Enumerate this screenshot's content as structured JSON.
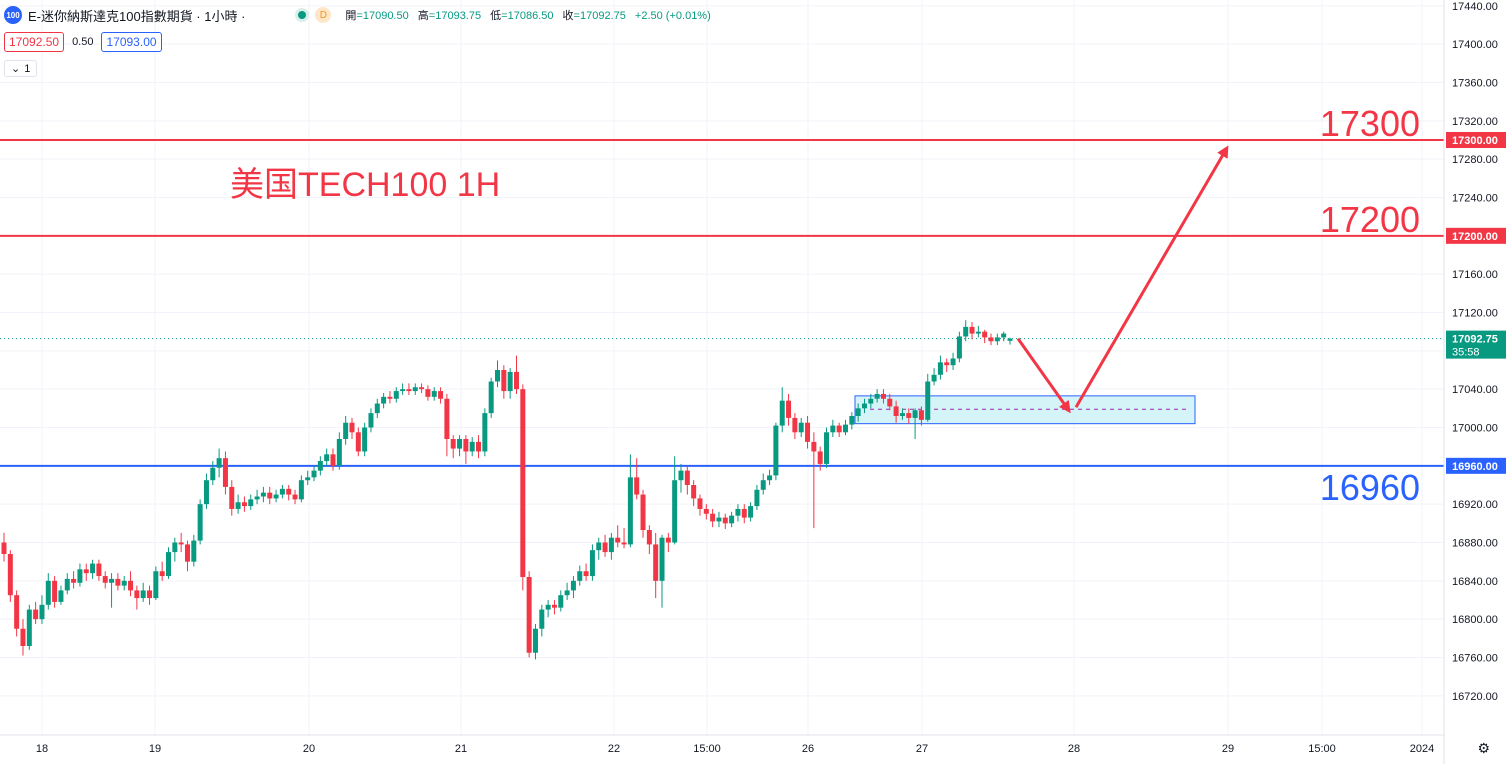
{
  "header": {
    "logo_text": "100",
    "title": "E-迷你納斯達克100指數期貨 · 1小時 ·",
    "status_badge": "D",
    "ohlc": {
      "open_label": "開",
      "open": "=17090.50",
      "high_label": "高",
      "high": "=17093.75",
      "low_label": "低",
      "low": "=17086.50",
      "close_label": "收",
      "close": "=17092.75",
      "change": "+2.50 (+0.01%)"
    }
  },
  "trade": {
    "sell_price": "17092.50",
    "spread": "0.50",
    "buy_price": "17093.00"
  },
  "indicator_toggle": {
    "count": "1"
  },
  "colors": {
    "up": "#089981",
    "down": "#f23645",
    "support": "#2962ff",
    "resistance": "#f23645",
    "annotation": "#f23645"
  },
  "chart_data": {
    "type": "candlestick",
    "instrument": "E-迷你納斯達克100指數期貨",
    "interval": "1小時",
    "annotation_text": "美国TECH100 1H",
    "y_axis": {
      "ylim": [
        16700,
        17450
      ],
      "ticks": [
        "17440.00",
        "17400.00",
        "17360.00",
        "17320.00",
        "17280.00",
        "17240.00",
        "17200.00",
        "17160.00",
        "17120.00",
        "17080.00",
        "17040.00",
        "17000.00",
        "16960.00",
        "16920.00",
        "16880.00",
        "16840.00",
        "16800.00",
        "16760.00",
        "16720.00"
      ]
    },
    "x_axis": {
      "labels": [
        "18",
        "19",
        "20",
        "21",
        "22",
        "15:00",
        "26",
        "27",
        "28",
        "29",
        "15:00",
        "2024"
      ]
    },
    "horizontal_levels": [
      {
        "value": 17300,
        "label": "17300",
        "axis_label": "17300.00",
        "color": "#f23645"
      },
      {
        "value": 17200,
        "label": "17200",
        "axis_label": "17200.00",
        "color": "#f23645"
      },
      {
        "value": 16960,
        "label": "16960",
        "axis_label": "16960.00",
        "color": "#2962ff"
      }
    ],
    "current_price": {
      "value": 17092.75,
      "label": "17092.75",
      "countdown": "35:58"
    },
    "zone": {
      "top": 17033,
      "bottom": 17004,
      "mid": 17019
    },
    "projection_path": [
      17092.75,
      17019,
      17290
    ],
    "candles": [
      [
        16880,
        16868,
        16890,
        16860
      ],
      [
        16868,
        16825,
        16872,
        16818
      ],
      [
        16825,
        16790,
        16830,
        16782
      ],
      [
        16790,
        16772,
        16800,
        16762
      ],
      [
        16772,
        16810,
        16815,
        16768
      ],
      [
        16810,
        16800,
        16818,
        16795
      ],
      [
        16800,
        16815,
        16825,
        16795
      ],
      [
        16815,
        16840,
        16848,
        16810
      ],
      [
        16840,
        16818,
        16845,
        16812
      ],
      [
        16818,
        16830,
        16835,
        16815
      ],
      [
        16830,
        16842,
        16848,
        16826
      ],
      [
        16842,
        16838,
        16850,
        16832
      ],
      [
        16838,
        16852,
        16858,
        16834
      ],
      [
        16852,
        16848,
        16858,
        16840
      ],
      [
        16848,
        16858,
        16862,
        16842
      ],
      [
        16858,
        16845,
        16862,
        16840
      ],
      [
        16845,
        16838,
        16850,
        16832
      ],
      [
        16838,
        16842,
        16848,
        16812
      ],
      [
        16842,
        16835,
        16848,
        16830
      ],
      [
        16835,
        16840,
        16845,
        16830
      ],
      [
        16840,
        16830,
        16850,
        16824
      ],
      [
        16830,
        16822,
        16835,
        16810
      ],
      [
        16822,
        16830,
        16838,
        16818
      ],
      [
        16830,
        16822,
        16835,
        16815
      ],
      [
        16822,
        16850,
        16855,
        16820
      ],
      [
        16850,
        16845,
        16860,
        16840
      ],
      [
        16845,
        16870,
        16875,
        16842
      ],
      [
        16870,
        16880,
        16885,
        16860
      ],
      [
        16880,
        16878,
        16890,
        16870
      ],
      [
        16878,
        16860,
        16882,
        16850
      ],
      [
        16860,
        16882,
        16888,
        16855
      ],
      [
        16882,
        16920,
        16925,
        16878
      ],
      [
        16920,
        16945,
        16952,
        16915
      ],
      [
        16945,
        16958,
        16965,
        16940
      ],
      [
        16958,
        16968,
        16978,
        16948
      ],
      [
        16968,
        16938,
        16975,
        16930
      ],
      [
        16938,
        16915,
        16945,
        16908
      ],
      [
        16915,
        16922,
        16930,
        16910
      ],
      [
        16922,
        16918,
        16928,
        16912
      ],
      [
        16918,
        16925,
        16930,
        16914
      ],
      [
        16925,
        16928,
        16935,
        16920
      ],
      [
        16928,
        16932,
        16938,
        16922
      ],
      [
        16932,
        16926,
        16938,
        16920
      ],
      [
        16926,
        16930,
        16935,
        16922
      ],
      [
        16930,
        16936,
        16940,
        16926
      ],
      [
        16936,
        16930,
        16940,
        16924
      ],
      [
        16930,
        16925,
        16935,
        16920
      ],
      [
        16925,
        16945,
        16950,
        16922
      ],
      [
        16945,
        16948,
        16955,
        16940
      ],
      [
        16948,
        16955,
        16960,
        16944
      ],
      [
        16955,
        16965,
        16970,
        16950
      ],
      [
        16965,
        16972,
        16978,
        16960
      ],
      [
        16972,
        16960,
        16978,
        16955
      ],
      [
        16960,
        16988,
        16995,
        16956
      ],
      [
        16988,
        17005,
        17012,
        16982
      ],
      [
        17005,
        16995,
        17010,
        16988
      ],
      [
        16995,
        16975,
        17000,
        16970
      ],
      [
        16975,
        17000,
        17005,
        16970
      ],
      [
        17000,
        17015,
        17020,
        16995
      ],
      [
        17015,
        17025,
        17030,
        17010
      ],
      [
        17025,
        17032,
        17036,
        17020
      ],
      [
        17032,
        17030,
        17038,
        17025
      ],
      [
        17030,
        17038,
        17042,
        17026
      ],
      [
        17038,
        17040,
        17046,
        17034
      ],
      [
        17040,
        17038,
        17046,
        17034
      ],
      [
        17038,
        17042,
        17046,
        17034
      ],
      [
        17042,
        17040,
        17046,
        17036
      ],
      [
        17040,
        17032,
        17044,
        17028
      ],
      [
        17032,
        17038,
        17042,
        17028
      ],
      [
        17038,
        17030,
        17042,
        17025
      ],
      [
        17030,
        16988,
        17035,
        16970
      ],
      [
        16988,
        16978,
        16992,
        16968
      ],
      [
        16978,
        16988,
        16992,
        16970
      ],
      [
        16988,
        16975,
        16992,
        16962
      ],
      [
        16975,
        16985,
        16990,
        16970
      ],
      [
        16985,
        16975,
        16992,
        16968
      ],
      [
        16975,
        17015,
        17020,
        16970
      ],
      [
        17015,
        17048,
        17052,
        17010
      ],
      [
        17048,
        17060,
        17070,
        17042
      ],
      [
        17060,
        17038,
        17065,
        17030
      ],
      [
        17038,
        17058,
        17062,
        17030
      ],
      [
        17058,
        17040,
        17075,
        17035
      ],
      [
        17040,
        16844,
        17045,
        16830
      ],
      [
        16844,
        16765,
        16850,
        16760
      ],
      [
        16765,
        16790,
        16795,
        16758
      ],
      [
        16790,
        16810,
        16815,
        16782
      ],
      [
        16810,
        16815,
        16820,
        16802
      ],
      [
        16815,
        16812,
        16820,
        16805
      ],
      [
        16812,
        16825,
        16830,
        16808
      ],
      [
        16825,
        16830,
        16838,
        16820
      ],
      [
        16830,
        16840,
        16845,
        16822
      ],
      [
        16840,
        16850,
        16856,
        16835
      ],
      [
        16850,
        16845,
        16858,
        16840
      ],
      [
        16845,
        16872,
        16878,
        16840
      ],
      [
        16872,
        16880,
        16885,
        16862
      ],
      [
        16880,
        16870,
        16888,
        16865
      ],
      [
        16870,
        16885,
        16890,
        16862
      ],
      [
        16885,
        16880,
        16898,
        16875
      ],
      [
        16880,
        16878,
        16895,
        16874
      ],
      [
        16878,
        16948,
        16972,
        16875
      ],
      [
        16948,
        16930,
        16968,
        16925
      ],
      [
        16930,
        16893,
        16935,
        16885
      ],
      [
        16893,
        16878,
        16898,
        16868
      ],
      [
        16878,
        16840,
        16890,
        16822
      ],
      [
        16840,
        16885,
        16888,
        16812
      ],
      [
        16885,
        16880,
        16890,
        16870
      ],
      [
        16880,
        16945,
        16970,
        16878
      ],
      [
        16945,
        16955,
        16962,
        16932
      ],
      [
        16955,
        16940,
        16960,
        16930
      ],
      [
        16940,
        16926,
        16945,
        16918
      ],
      [
        16926,
        16915,
        16930,
        16908
      ],
      [
        16915,
        16910,
        16920,
        16904
      ],
      [
        16910,
        16902,
        16915,
        16896
      ],
      [
        16902,
        16906,
        16912,
        16896
      ],
      [
        16906,
        16900,
        16910,
        16894
      ],
      [
        16900,
        16908,
        16912,
        16896
      ],
      [
        16908,
        16915,
        16920,
        16902
      ],
      [
        16915,
        16906,
        16920,
        16900
      ],
      [
        16906,
        16918,
        16922,
        16902
      ],
      [
        16918,
        16935,
        16940,
        16914
      ],
      [
        16935,
        16945,
        16952,
        16930
      ],
      [
        16945,
        16950,
        16956,
        16940
      ],
      [
        16950,
        17002,
        17005,
        16945
      ],
      [
        17002,
        17028,
        17042,
        16995
      ],
      [
        17028,
        17010,
        17035,
        17002
      ],
      [
        17010,
        16995,
        17015,
        16988
      ],
      [
        16995,
        17005,
        17010,
        16990
      ],
      [
        17005,
        16985,
        17012,
        16978
      ],
      [
        16985,
        16975,
        16995,
        16895
      ],
      [
        16975,
        16962,
        16980,
        16955
      ],
      [
        16962,
        16995,
        17000,
        16958
      ],
      [
        16995,
        17002,
        17008,
        16990
      ],
      [
        17002,
        16995,
        17005,
        16990
      ],
      [
        16995,
        17003,
        17008,
        16992
      ],
      [
        17003,
        17012,
        17016,
        16998
      ],
      [
        17012,
        17020,
        17025,
        17006
      ],
      [
        17020,
        17025,
        17030,
        17015
      ],
      [
        17025,
        17030,
        17035,
        17020
      ],
      [
        17030,
        17035,
        17040,
        17026
      ],
      [
        17035,
        17030,
        17040,
        17025
      ],
      [
        17030,
        17022,
        17035,
        17018
      ],
      [
        17022,
        17012,
        17028,
        17005
      ],
      [
        17012,
        17015,
        17020,
        17008
      ],
      [
        17015,
        17010,
        17020,
        17004
      ],
      [
        17010,
        17018,
        17020,
        16988
      ],
      [
        17018,
        17008,
        17022,
        17002
      ],
      [
        17008,
        17048,
        17056,
        17006
      ],
      [
        17048,
        17055,
        17062,
        17044
      ],
      [
        17055,
        17068,
        17075,
        17050
      ],
      [
        17068,
        17065,
        17072,
        17058
      ],
      [
        17065,
        17072,
        17078,
        17060
      ],
      [
        17072,
        17095,
        17100,
        17068
      ],
      [
        17095,
        17105,
        17112,
        17090
      ],
      [
        17105,
        17098,
        17110,
        17092
      ],
      [
        17098,
        17100,
        17106,
        17094
      ],
      [
        17100,
        17094,
        17102,
        17088
      ],
      [
        17094,
        17090,
        17098,
        17086
      ],
      [
        17090,
        17094,
        17098,
        17086
      ],
      [
        17094,
        17098,
        17100,
        17090
      ],
      [
        17090.5,
        17092.75,
        17093.75,
        17086.5
      ]
    ]
  }
}
